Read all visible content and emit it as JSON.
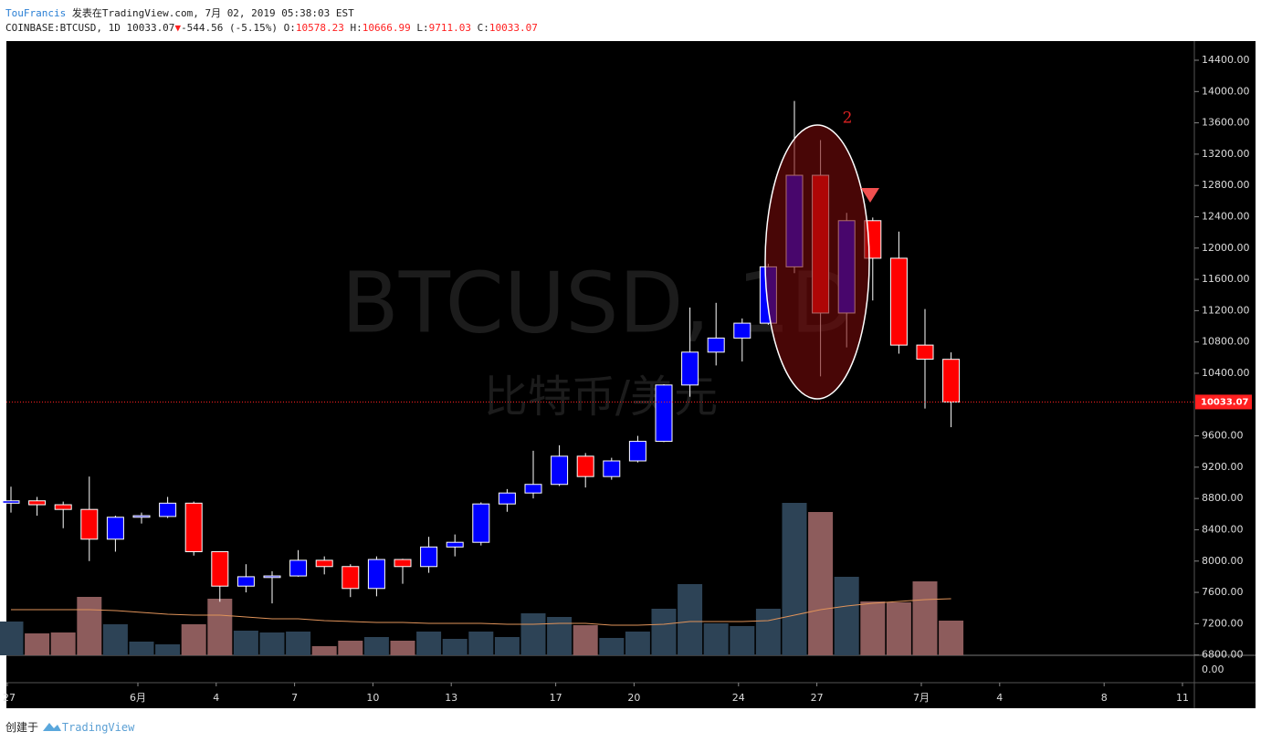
{
  "header": {
    "author": "TouFrancis",
    "published": "发表在TradingView.com, 7月 02, 2019 05:38:03 EST",
    "symbol": "COINBASE:BTCUSD, 1D 10033.07",
    "change": "-544.56 (-5.15%)",
    "o_label": "O:",
    "o": "10578.23",
    "h_label": "H:",
    "h": "10666.99",
    "l_label": "L:",
    "l": "9711.03",
    "c_label": "C:",
    "c": "10033.07"
  },
  "chart_data": {
    "type": "candlestick",
    "watermark": "BTCUSD, 1D",
    "watermark_subtitle": "比特币/美元",
    "open": [
      8740,
      8770,
      8720,
      8660,
      8280,
      8560,
      8570,
      8740,
      8120,
      7680,
      7790,
      7810,
      8010,
      7930,
      7650,
      8020,
      7930,
      8180,
      8240,
      8730,
      8870,
      8980,
      9340,
      9080,
      9280,
      9530,
      10250,
      10670,
      10850,
      11040,
      11760,
      12930,
      11170,
      12350,
      11870,
      10760,
      10578.23
    ],
    "high": [
      8950,
      8820,
      8760,
      9080,
      8580,
      8620,
      8820,
      8760,
      8120,
      7960,
      7870,
      8140,
      8060,
      7960,
      8060,
      8030,
      8310,
      8340,
      8750,
      8920,
      9410,
      9480,
      9380,
      9320,
      9600,
      10260,
      11240,
      11300,
      11100,
      11800,
      13880,
      13380,
      12450,
      12390,
      12210,
      11220,
      10666.99
    ],
    "low": [
      8620,
      8580,
      8420,
      8000,
      8120,
      8480,
      8550,
      8070,
      7480,
      7600,
      7460,
      7800,
      7830,
      7540,
      7550,
      7710,
      7850,
      8060,
      8200,
      8630,
      8800,
      8960,
      8940,
      9040,
      9260,
      9520,
      10100,
      10500,
      10550,
      11020,
      11680,
      10360,
      10730,
      11330,
      10650,
      9950,
      9711.03
    ],
    "close": [
      8770,
      8720,
      8660,
      8280,
      8560,
      8580,
      8740,
      8120,
      7680,
      7800,
      7810,
      8010,
      7930,
      7650,
      8020,
      7930,
      8180,
      8240,
      8730,
      8870,
      8980,
      9340,
      9080,
      9280,
      9530,
      10250,
      10670,
      10850,
      11040,
      11760,
      12930,
      11170,
      12350,
      11870,
      10760,
      10580,
      10033.07
    ],
    "volume": [
      37,
      24,
      25,
      64,
      34,
      15,
      12,
      34,
      62,
      27,
      25,
      26,
      10,
      16,
      20,
      16,
      26,
      18,
      26,
      20,
      46,
      42,
      33,
      19,
      26,
      51,
      78,
      35,
      32,
      51,
      167,
      157,
      86,
      59,
      58,
      81,
      38
    ],
    "volume_ma": [
      50,
      50,
      50,
      50,
      49,
      47,
      45,
      44,
      44,
      42,
      40,
      40,
      38,
      37,
      36,
      36,
      35,
      35,
      35,
      34,
      34,
      35,
      35,
      33,
      33,
      34,
      37,
      37,
      37,
      38,
      44,
      50,
      54,
      57,
      59,
      61,
      62
    ],
    "up_color": "#0000ff",
    "down_color": "#ff0000",
    "ma_color": "#e0935a",
    "ylim": [
      6796,
      14645
    ],
    "yticks": [
      {
        "value": 6800,
        "label": "6800.00"
      },
      {
        "value": 7200,
        "label": "7200.00"
      },
      {
        "value": 7600,
        "label": "7600.00"
      },
      {
        "value": 8000,
        "label": "8000.00"
      },
      {
        "value": 8400,
        "label": "8400.00"
      },
      {
        "value": 8800,
        "label": "8800.00"
      },
      {
        "value": 9200,
        "label": "9200.00"
      },
      {
        "value": 9600,
        "label": "9600.00"
      },
      {
        "value": 10400,
        "label": "10400.00"
      },
      {
        "value": 10800,
        "label": "10800.00"
      },
      {
        "value": 11200,
        "label": "11200.00"
      },
      {
        "value": 11600,
        "label": "11600.00"
      },
      {
        "value": 12000,
        "label": "12000.00"
      },
      {
        "value": 12400,
        "label": "12400.00"
      },
      {
        "value": 12800,
        "label": "12800.00"
      },
      {
        "value": 13200,
        "label": "13200.00"
      },
      {
        "value": 13600,
        "label": "13600.00"
      },
      {
        "value": 14000,
        "label": "14000.00"
      },
      {
        "value": 14400,
        "label": "14400.00"
      }
    ],
    "last_price": {
      "value": 10033.07,
      "label": "10033.07"
    },
    "volume_pane_tick": {
      "value": 0,
      "label": "0.00"
    },
    "xticks": [
      {
        "value": 0,
        "label": "27"
      },
      {
        "value": 5,
        "label": "6月"
      },
      {
        "value": 8,
        "label": "4"
      },
      {
        "value": 11,
        "label": "7"
      },
      {
        "value": 14,
        "label": "10"
      },
      {
        "value": 17,
        "label": "13"
      },
      {
        "value": 21,
        "label": "17"
      },
      {
        "value": 24,
        "label": "20"
      },
      {
        "value": 28,
        "label": "24"
      },
      {
        "value": 31,
        "label": "27"
      },
      {
        "value": 35,
        "label": "7月"
      },
      {
        "value": 38,
        "label": "4"
      },
      {
        "value": 42,
        "label": "8"
      },
      {
        "value": 45,
        "label": "11"
      }
    ],
    "annotation": "2"
  },
  "footer": {
    "created": "创建于",
    "brand": "TradingView"
  }
}
